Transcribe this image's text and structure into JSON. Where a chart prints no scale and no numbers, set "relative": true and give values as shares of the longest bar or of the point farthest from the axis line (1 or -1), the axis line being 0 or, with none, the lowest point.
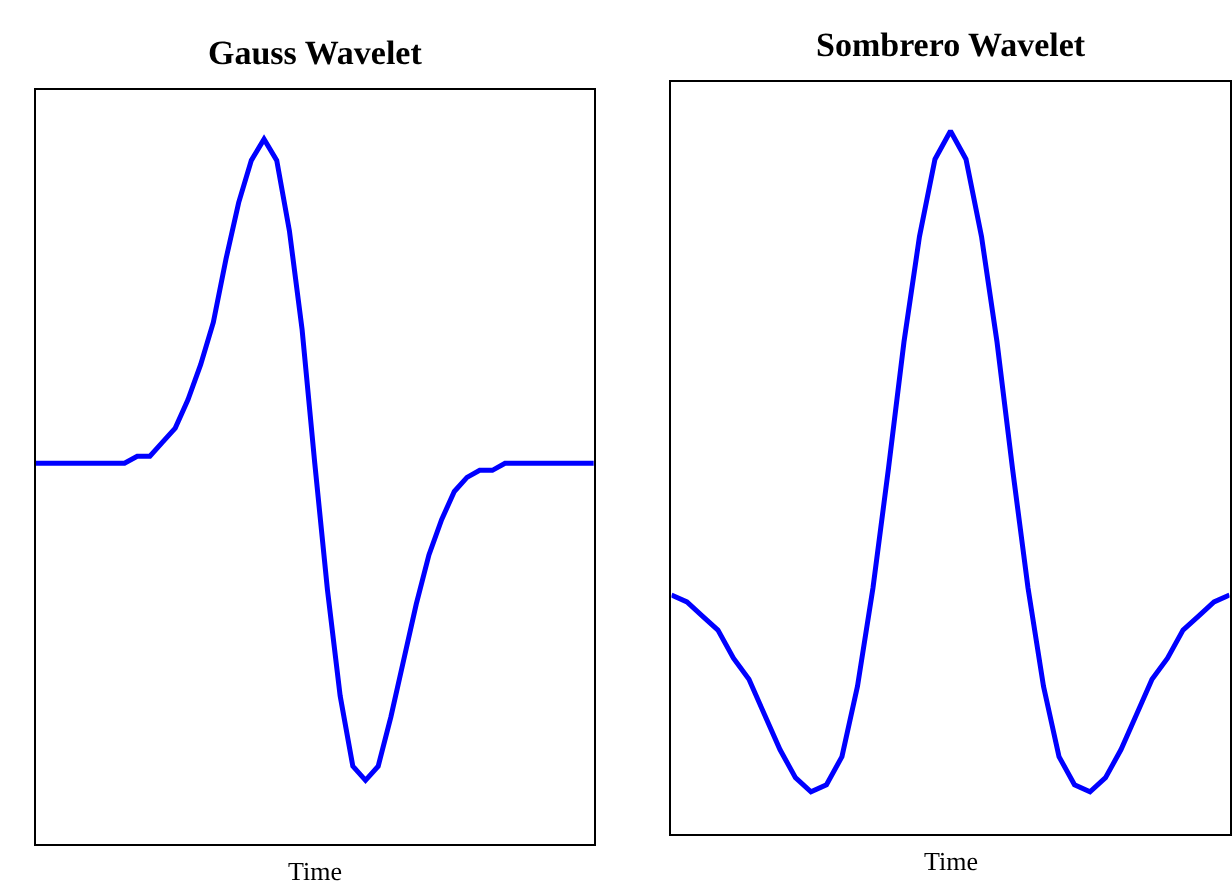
{
  "chart_data": [
    {
      "type": "line",
      "title": "Gauss Wavelet",
      "xlabel": "Time",
      "relative": true,
      "color": "#0000ff",
      "categories": [
        null,
        null,
        null,
        null,
        null,
        null,
        null,
        null,
        null,
        null,
        null,
        null,
        null,
        null,
        null,
        null,
        null,
        null,
        null,
        null,
        null,
        null,
        null,
        null,
        null,
        null,
        null,
        null,
        null,
        null,
        null,
        null,
        null,
        null,
        null,
        null,
        null,
        null,
        null,
        null,
        null,
        null,
        null,
        null,
        null
      ],
      "values": [
        0.54,
        0.54,
        0.54,
        0.54,
        0.54,
        0.54,
        0.54,
        0.54,
        0.55,
        0.55,
        0.57,
        0.59,
        0.63,
        0.68,
        0.74,
        0.83,
        0.91,
        0.97,
        1,
        0.97,
        0.87,
        0.73,
        0.54,
        0.36,
        0.21,
        0.11,
        0.09,
        0.11,
        0.18,
        0.26,
        0.34,
        0.41,
        0.46,
        0.5,
        0.52,
        0.53,
        0.53,
        0.54,
        0.54,
        0.54,
        0.54,
        0.54,
        0.54,
        0.54,
        0.54
      ]
    },
    {
      "type": "line",
      "title": "Sombrero Wavelet",
      "xlabel": "Time",
      "relative": true,
      "color": "#0000ff",
      "categories": [
        null,
        null,
        null,
        null,
        null,
        null,
        null,
        null,
        null,
        null,
        null,
        null,
        null,
        null,
        null,
        null,
        null,
        null,
        null,
        null,
        null,
        null,
        null,
        null,
        null,
        null,
        null,
        null,
        null,
        null,
        null,
        null,
        null,
        null,
        null,
        null,
        null
      ],
      "values": [
        0.34,
        0.33,
        0.31,
        0.29,
        0.25,
        0.22,
        0.17,
        0.12,
        0.08,
        0.06,
        0.07,
        0.11,
        0.21,
        0.35,
        0.52,
        0.7,
        0.85,
        0.96,
        1,
        0.96,
        0.85,
        0.7,
        0.52,
        0.35,
        0.21,
        0.11,
        0.07,
        0.06,
        0.08,
        0.12,
        0.17,
        0.22,
        0.25,
        0.29,
        0.31,
        0.33,
        0.34
      ]
    }
  ]
}
